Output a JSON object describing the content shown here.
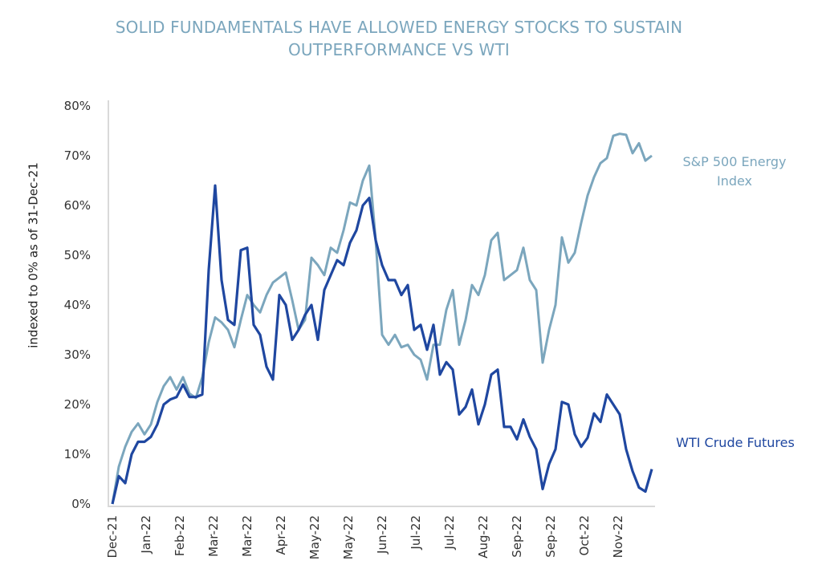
{
  "title": {
    "line1": "SOLID FUNDAMENTALS HAVE ALLOWED ENERGY STOCKS TO SUSTAIN",
    "line2": "OUTPERFORMANCE VS WTI"
  },
  "chart_data": {
    "type": "line",
    "title": "SOLID FUNDAMENTALS HAVE ALLOWED ENERGY STOCKS TO SUSTAIN OUTPERFORMANCE VS WTI",
    "xlabel": "",
    "ylabel": "indexed to 0% as of 31-Dec-21",
    "ylim": [
      0,
      80
    ],
    "y_ticks": [
      "0%",
      "10%",
      "20%",
      "30%",
      "40%",
      "50%",
      "60%",
      "70%",
      "80%"
    ],
    "x_ticks": [
      "Dec-21",
      "Jan-22",
      "Feb-22",
      "Mar-22",
      "Mar-22",
      "Apr-22",
      "May-22",
      "May-22",
      "Jun-22",
      "Jul-22",
      "Jul-22",
      "Aug-22",
      "Sep-22",
      "Sep-22",
      "Oct-22",
      "Nov-22"
    ],
    "x_tick_dates": [
      "2021-12-31",
      "2022-01-21",
      "2022-02-11",
      "2022-03-04",
      "2022-03-25",
      "2022-04-15",
      "2022-05-06",
      "2022-05-27",
      "2022-06-17",
      "2022-07-08",
      "2022-07-29",
      "2022-08-19",
      "2022-09-09",
      "2022-09-30",
      "2022-10-21",
      "2022-11-11"
    ],
    "grid": false,
    "legend": "direct labels at right end of lines",
    "x": [
      "2021-12-31",
      "2022-01-04",
      "2022-01-08",
      "2022-01-12",
      "2022-01-16",
      "2022-01-20",
      "2022-01-24",
      "2022-01-28",
      "2022-02-01",
      "2022-02-05",
      "2022-02-09",
      "2022-02-13",
      "2022-02-17",
      "2022-02-21",
      "2022-02-25",
      "2022-03-01",
      "2022-03-05",
      "2022-03-09",
      "2022-03-13",
      "2022-03-17",
      "2022-03-21",
      "2022-03-25",
      "2022-03-29",
      "2022-04-02",
      "2022-04-06",
      "2022-04-10",
      "2022-04-14",
      "2022-04-18",
      "2022-04-22",
      "2022-04-26",
      "2022-04-30",
      "2022-05-04",
      "2022-05-08",
      "2022-05-12",
      "2022-05-16",
      "2022-05-20",
      "2022-05-24",
      "2022-05-28",
      "2022-06-01",
      "2022-06-05",
      "2022-06-09",
      "2022-06-13",
      "2022-06-17",
      "2022-06-21",
      "2022-06-25",
      "2022-06-29",
      "2022-07-03",
      "2022-07-07",
      "2022-07-11",
      "2022-07-15",
      "2022-07-19",
      "2022-07-23",
      "2022-07-27",
      "2022-07-31",
      "2022-08-04",
      "2022-08-08",
      "2022-08-12",
      "2022-08-16",
      "2022-08-20",
      "2022-08-24",
      "2022-08-28",
      "2022-09-01",
      "2022-09-05",
      "2022-09-09",
      "2022-09-13",
      "2022-09-17",
      "2022-09-21",
      "2022-09-25",
      "2022-09-29",
      "2022-10-03",
      "2022-10-07",
      "2022-10-11",
      "2022-10-15",
      "2022-10-19",
      "2022-10-23",
      "2022-10-27",
      "2022-10-31",
      "2022-11-04",
      "2022-11-08",
      "2022-11-12",
      "2022-11-16",
      "2022-11-20",
      "2022-11-24",
      "2022-11-28",
      "2022-12-02"
    ],
    "series": [
      {
        "name": "S&P 500 Energy Index",
        "color": "#7ba6bd",
        "values": [
          0,
          7.5,
          11.5,
          14.5,
          16.2,
          14,
          16,
          20.5,
          23.7,
          25.5,
          23,
          25.5,
          22.2,
          21.3,
          25.5,
          32.5,
          37.5,
          36.5,
          35,
          31.5,
          37,
          42,
          40,
          38.5,
          42,
          44.5,
          45.5,
          46.5,
          41,
          35,
          37,
          49.5,
          48,
          46,
          51.5,
          50.5,
          55,
          60.6,
          60,
          65,
          68,
          53,
          34,
          32,
          34,
          31.5,
          32,
          30,
          29,
          25,
          32,
          32,
          39,
          43,
          32,
          37,
          44,
          42,
          46,
          53,
          54.5,
          45,
          46,
          47,
          51.5,
          45,
          43,
          28.4,
          35,
          40,
          53.6,
          48.5,
          50.5,
          56.5,
          62,
          65.7,
          68.5,
          69.5,
          74,
          74.4,
          74.2,
          70.5,
          72.5,
          69,
          70
        ]
      },
      {
        "name": "WTI Crude Futures",
        "color": "#1f47a0",
        "values": [
          0,
          5.6,
          4.2,
          10,
          12.5,
          12.5,
          13.5,
          16,
          20,
          21,
          21.5,
          24,
          21.5,
          21.5,
          22,
          47,
          64,
          45,
          37,
          36,
          51,
          51.5,
          36,
          34,
          27.6,
          25,
          42,
          40,
          33,
          35,
          38,
          40,
          33,
          43,
          46,
          49,
          48,
          52.5,
          55,
          60,
          61.5,
          53,
          48,
          45,
          45,
          42,
          44,
          35,
          36,
          31,
          36,
          26,
          28.5,
          27,
          18,
          19.5,
          23,
          16,
          20,
          26,
          27,
          15.5,
          15.5,
          13,
          17,
          13.5,
          11,
          3,
          8,
          11,
          20.5,
          20,
          14,
          11.5,
          13.3,
          18.2,
          16.5,
          22,
          20,
          18,
          11,
          6.6,
          3.3,
          2.5,
          7
        ]
      }
    ]
  }
}
